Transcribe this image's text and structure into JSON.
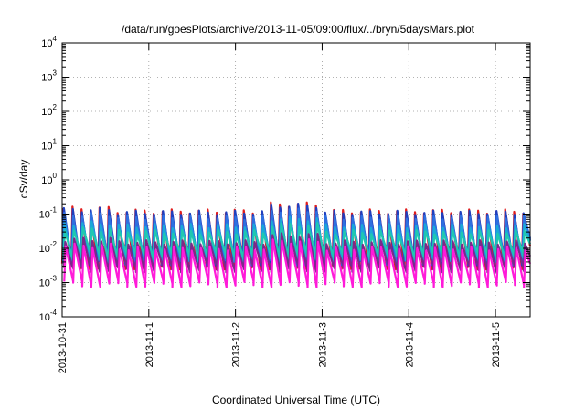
{
  "chart_data": {
    "type": "line",
    "title": "/data/run/goesPlots/archive/2013-11-05/09:00/flux/../bryn/5daysMars.plot",
    "xlabel": "Coordinated Universal Time (UTC)",
    "ylabel": "cSv/day",
    "y_scale": "log",
    "ylim": [
      0.0001,
      10000
    ],
    "xlim_days": [
      0,
      5.4
    ],
    "x_ticks": [
      "2013-10-31",
      "2013-11-1",
      "2013-11-2",
      "2013-11-3",
      "2013-11-4",
      "2013-11-5"
    ],
    "y_ticks": [
      {
        "base": "10",
        "exp": "4"
      },
      {
        "base": "10",
        "exp": "3"
      },
      {
        "base": "10",
        "exp": "2"
      },
      {
        "base": "10",
        "exp": "1"
      },
      {
        "base": "10",
        "exp": "0"
      },
      {
        "base": "10",
        "exp": "-1"
      },
      {
        "base": "10",
        "exp": "-2"
      },
      {
        "base": "10",
        "exp": "-3"
      },
      {
        "base": "10",
        "exp": "-4"
      }
    ],
    "grid": true,
    "legend": "none",
    "sawtooth_period_days": 0.104,
    "series": [
      {
        "color": "#e11d1d",
        "low": 0.003,
        "high": 0.12
      },
      {
        "color": "#1f3fbf",
        "low": 0.004,
        "high": 0.11
      },
      {
        "color": "#2f6fe0",
        "low": 0.004,
        "high": 0.08
      },
      {
        "color": "#1aa8d8",
        "low": 0.005,
        "high": 0.045
      },
      {
        "color": "#20c8b0",
        "low": 0.006,
        "high": 0.03
      },
      {
        "color": "#7a2a8a",
        "low": 0.0025,
        "high": 0.015
      },
      {
        "color": "#ff1ad9",
        "low": 0.0009,
        "high": 0.01
      }
    ]
  }
}
